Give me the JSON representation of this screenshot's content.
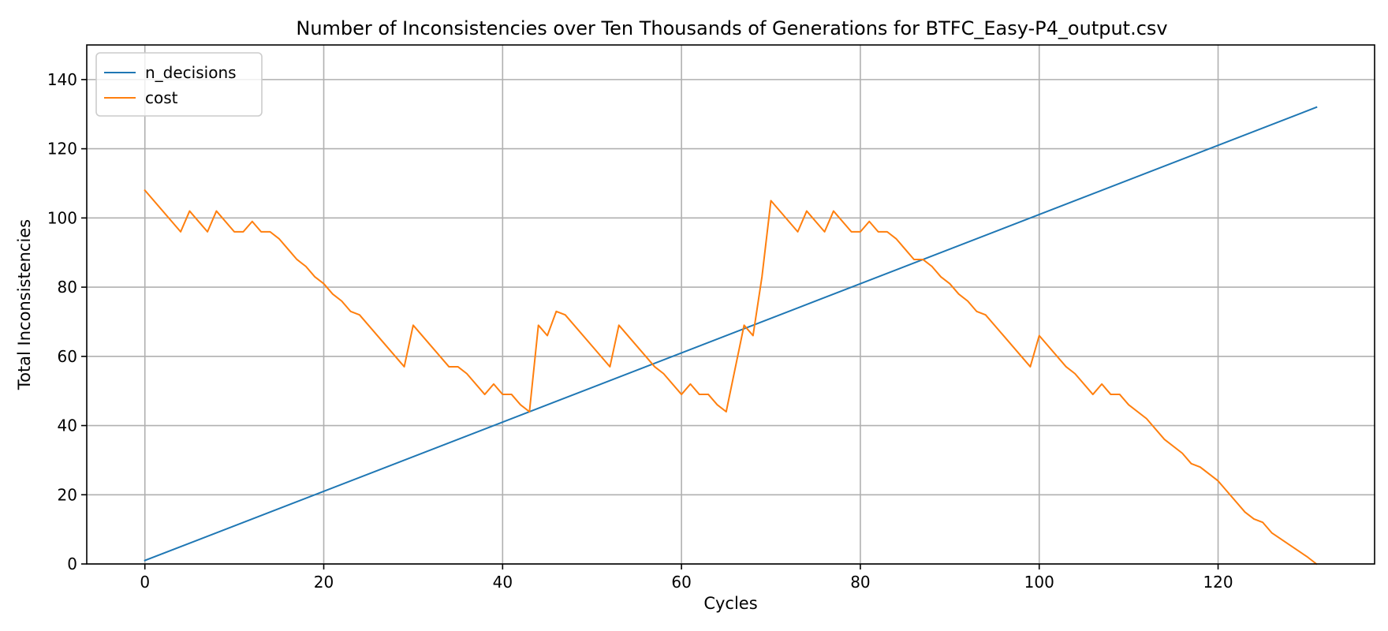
{
  "chart_data": {
    "type": "line",
    "title": "Number of Inconsistencies over Ten Thousands of Generations for BTFC_Easy-P4_output.csv",
    "xlabel": "Cycles",
    "ylabel": "Total Inconsistencies",
    "xlim": [
      -6.5,
      137.5
    ],
    "ylim": [
      0,
      150
    ],
    "xticks": [
      0,
      20,
      40,
      60,
      80,
      100,
      120
    ],
    "yticks": [
      0,
      20,
      40,
      60,
      80,
      100,
      120,
      140
    ],
    "grid": true,
    "legend_position": "top-left",
    "series": [
      {
        "name": "n_decisions",
        "color": "#1f77b4",
        "x": [
          0,
          131
        ],
        "y": [
          1,
          132
        ]
      },
      {
        "name": "cost",
        "color": "#ff7f0e",
        "x": [
          0,
          4,
          5,
          7,
          8,
          10,
          11,
          12,
          13,
          14,
          15,
          16,
          17,
          18,
          19,
          20,
          21,
          22,
          23,
          24,
          29,
          30,
          34,
          35,
          36,
          38,
          39,
          40,
          41,
          42,
          43,
          44,
          45,
          46,
          47,
          52,
          53,
          57,
          58,
          60,
          61,
          62,
          63,
          64,
          65,
          67,
          68,
          69,
          70,
          73,
          74,
          76,
          77,
          79,
          80,
          81,
          82,
          83,
          84,
          85,
          86,
          87,
          88,
          89,
          90,
          91,
          92,
          93,
          94,
          99,
          100,
          103,
          104,
          106,
          107,
          108,
          109,
          110,
          112,
          114,
          116,
          117,
          118,
          120,
          123,
          124,
          125,
          126,
          130,
          131
        ],
        "y": [
          108,
          96,
          102,
          96,
          102,
          96,
          96,
          99,
          96,
          96,
          94,
          91,
          88,
          86,
          83,
          81,
          78,
          76,
          73,
          72,
          57,
          69,
          57,
          57,
          55,
          49,
          52,
          49,
          49,
          46,
          44,
          69,
          66,
          73,
          72,
          57,
          69,
          57,
          55,
          49,
          52,
          49,
          49,
          46,
          44,
          69,
          66,
          83,
          105,
          96,
          102,
          96,
          102,
          96,
          96,
          99,
          96,
          96,
          94,
          91,
          88,
          88,
          86,
          83,
          81,
          78,
          76,
          73,
          72,
          57,
          66,
          57,
          55,
          49,
          52,
          49,
          49,
          46,
          42,
          36,
          32,
          29,
          28,
          24,
          15,
          13,
          12,
          9,
          2,
          0
        ]
      }
    ]
  }
}
